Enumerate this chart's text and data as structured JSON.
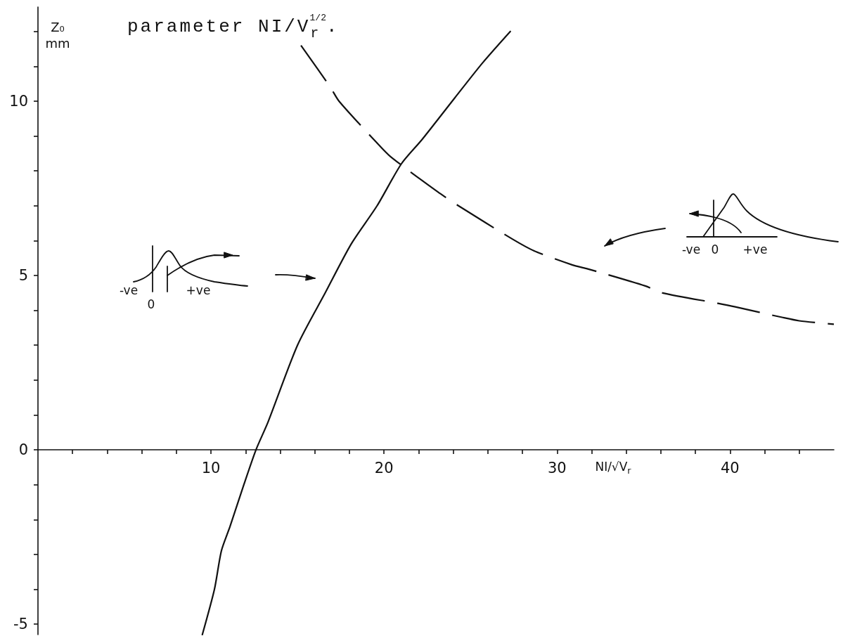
{
  "chart_data": {
    "type": "line",
    "title": "parameter NI/V$_{r}$$^{1/2}$.",
    "xlabel": "NI/√V$_{r}$",
    "ylabel": "Z₀\nmm",
    "annotations": [
      "-ve",
      "0",
      "+ve",
      "-ve",
      "0",
      "+ve"
    ],
    "series": [
      {
        "color": "#111111",
        "line_style": "solid",
        "x": [
          9.5,
          10.2,
          10.6,
          11.1,
          11.9,
          12.6,
          13.3,
          15.0,
          16.6,
          18.1,
          19.6,
          21.0,
          22.2,
          24.1,
          25.7,
          27.3
        ],
        "values": [
          -5.3,
          -4.0,
          -2.9,
          -2.2,
          -1.0,
          0,
          0.8,
          3.0,
          4.5,
          5.9,
          7.0,
          8.2,
          8.9,
          10.1,
          11.1,
          12.0
        ]
      },
      {
        "color": "#111111",
        "line_style": "dashed",
        "x": [
          15.2,
          16.9,
          17.4,
          19.6,
          20.4,
          23.1,
          24.3,
          27.4,
          28.7,
          30.9,
          31.7,
          35.1,
          36.1,
          39.3,
          40.3,
          43.0,
          44.0,
          46.0
        ],
        "values": [
          11.6,
          10.4,
          10.0,
          8.8,
          8.4,
          7.4,
          7.0,
          6.05,
          5.7,
          5.3,
          5.2,
          4.7,
          4.5,
          4.2,
          4.1,
          3.8,
          3.7,
          3.6
        ]
      }
    ],
    "xlim": [
      0,
      46
    ],
    "ylim": [
      -5.3,
      12.7
    ],
    "xticks": [
      {
        "value": 2,
        "label": null
      },
      {
        "value": 4,
        "label": null
      },
      {
        "value": 6,
        "label": null
      },
      {
        "value": 8,
        "label": null
      },
      10,
      {
        "value": 12,
        "label": null
      },
      {
        "value": 14,
        "label": null
      },
      {
        "value": 16,
        "label": null
      },
      {
        "value": 18,
        "label": null
      },
      20,
      {
        "value": 22,
        "label": null
      },
      {
        "value": 24,
        "label": null
      },
      {
        "value": 26,
        "label": null
      },
      {
        "value": 28,
        "label": null
      },
      30,
      {
        "value": 32,
        "label": null
      },
      {
        "value": 34,
        "label": null
      },
      {
        "value": 36,
        "label": null
      },
      {
        "value": 38,
        "label": null
      },
      40,
      {
        "value": 42,
        "label": null
      },
      {
        "value": 44,
        "label": null
      }
    ],
    "yticks": [
      -5,
      {
        "value": -4,
        "label": null
      },
      {
        "value": -3,
        "label": null
      },
      {
        "value": -2,
        "label": null
      },
      {
        "value": -1,
        "label": null
      },
      0,
      {
        "value": 1,
        "label": null
      },
      {
        "value": 2,
        "label": null
      },
      {
        "value": 3,
        "label": null
      },
      {
        "value": 4,
        "label": null
      },
      5,
      {
        "value": 6,
        "label": null
      },
      {
        "value": 7,
        "label": null
      },
      {
        "value": 8,
        "label": null
      },
      {
        "value": 9,
        "label": null
      },
      10,
      {
        "value": 11,
        "label": null
      },
      {
        "value": 12,
        "label": null
      }
    ],
    "grid": false,
    "marker": "none"
  }
}
